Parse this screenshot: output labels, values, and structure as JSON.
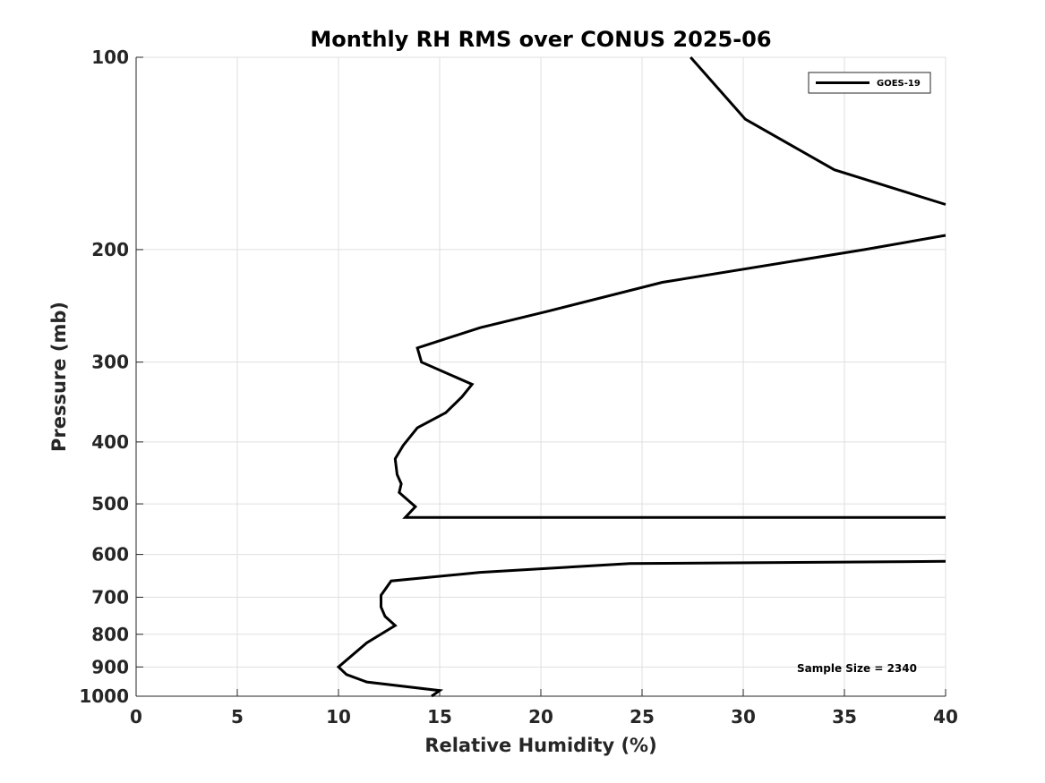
{
  "chart_data": {
    "type": "line",
    "title": "Monthly RH RMS over CONUS  2025-06",
    "xlabel": "Relative Humidity (%)",
    "ylabel": "Pressure (mb)",
    "xlim": [
      0,
      40
    ],
    "ylim": [
      1000,
      100
    ],
    "yscale": "log",
    "grid": true,
    "legend_position": "top-right",
    "x_ticks": [
      0,
      5,
      10,
      15,
      20,
      25,
      30,
      35,
      40
    ],
    "y_ticks": [
      100,
      200,
      300,
      400,
      500,
      600,
      700,
      800,
      900,
      1000
    ],
    "series": [
      {
        "name": "GOES-19",
        "color": "#000000",
        "x": [
          27.4,
          30.1,
          34.5,
          40.0,
          null,
          40.0,
          36.0,
          26.0,
          20.3,
          17.0,
          13.9,
          14.1,
          16.6,
          16.1,
          15.3,
          13.9,
          13.2,
          12.8,
          12.9,
          13.1,
          13.0,
          13.8,
          13.3,
          40.0,
          null,
          40.0,
          24.4,
          17.0,
          12.6,
          12.1,
          12.1,
          12.3,
          12.8,
          11.4,
          10.0,
          10.4,
          11.4,
          15.0,
          14.6
        ],
        "y": [
          100,
          125,
          150,
          170,
          null,
          190,
          200,
          225,
          250,
          265,
          285,
          300,
          325,
          340,
          360,
          380,
          405,
          425,
          450,
          465,
          480,
          505,
          525,
          525,
          null,
          615,
          620,
          640,
          660,
          695,
          725,
          750,
          775,
          825,
          900,
          925,
          950,
          980,
          1000
        ]
      }
    ],
    "annotations": [
      "Sample Size = 2340"
    ]
  }
}
